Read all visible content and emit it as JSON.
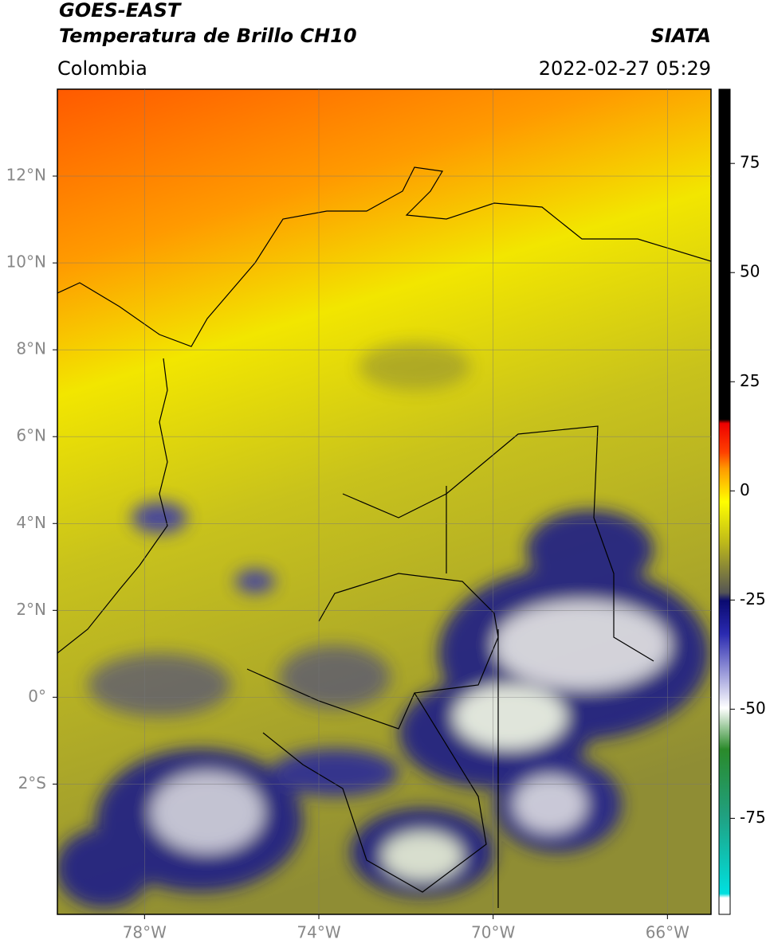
{
  "header": {
    "title": "GOES-EAST",
    "subtitle": "Temperatura de Brillo CH10",
    "region": "Colombia",
    "brand": "SIATA",
    "datetime": "2022-02-27 05:29"
  },
  "map": {
    "lonlim": [
      -80,
      -65
    ],
    "latlim": [
      -5,
      14
    ],
    "lon_ticks": [
      {
        "value": -78,
        "label": "78°W"
      },
      {
        "value": -74,
        "label": "74°W"
      },
      {
        "value": -70,
        "label": "70°W"
      },
      {
        "value": -66,
        "label": "66°W"
      }
    ],
    "lat_ticks": [
      {
        "value": -2,
        "label": "2°S"
      },
      {
        "value": 0,
        "label": "0°"
      },
      {
        "value": 2,
        "label": "2°N"
      },
      {
        "value": 4,
        "label": "4°N"
      },
      {
        "value": 6,
        "label": "6°N"
      },
      {
        "value": 8,
        "label": "8°N"
      },
      {
        "value": 10,
        "label": "10°N"
      },
      {
        "value": 12,
        "label": "12°N"
      }
    ]
  },
  "colorbar": {
    "lim": [
      -97,
      92
    ],
    "ticks": [
      -75,
      -50,
      -25,
      0,
      25,
      50,
      75
    ]
  }
}
